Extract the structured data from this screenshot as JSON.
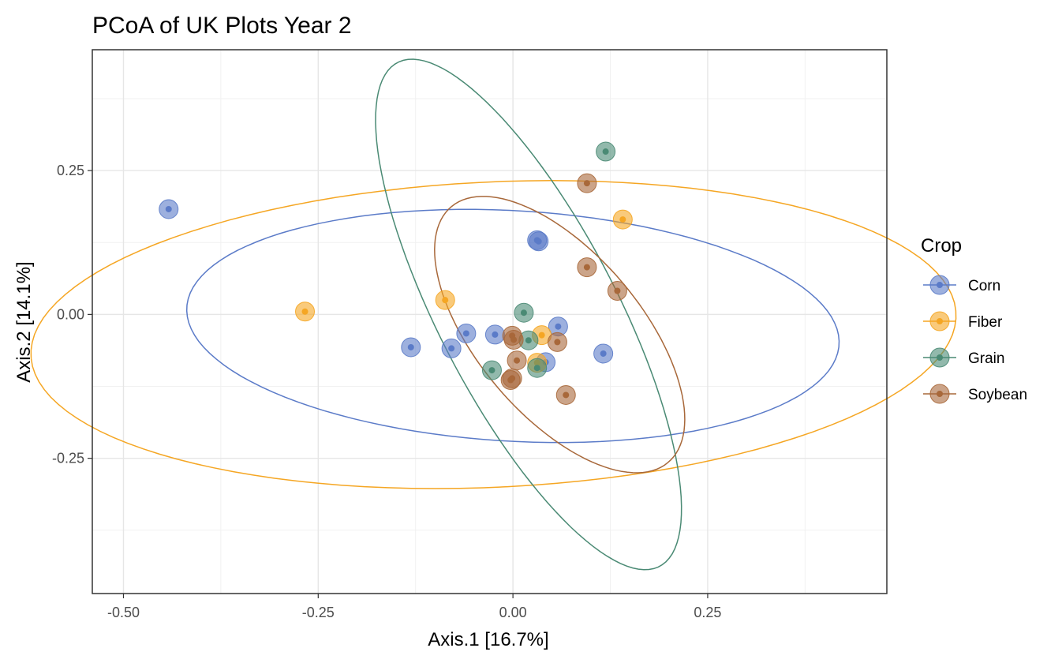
{
  "chart_data": {
    "type": "scatter",
    "title": "PCoA of UK Plots Year 2",
    "xlabel": "Axis.1   [16.7%]",
    "ylabel": "Axis.2   [14.1%]",
    "xlim": [
      -0.54,
      0.48
    ],
    "ylim": [
      -0.485,
      0.46
    ],
    "xticks": [
      -0.5,
      -0.25,
      0.0,
      0.25
    ],
    "xtick_labels": [
      "-0.50",
      "-0.25",
      "0.00",
      "0.25"
    ],
    "yticks": [
      -0.25,
      0.0,
      0.25
    ],
    "ytick_labels": [
      "-0.25",
      "0.00",
      "0.25"
    ],
    "grid": true,
    "legend": {
      "title": "Crop",
      "placement": "right"
    },
    "series": [
      {
        "name": "Corn",
        "color": "#5b7bc8",
        "points": [
          [
            -0.442,
            0.183
          ],
          [
            -0.131,
            -0.057
          ],
          [
            -0.079,
            -0.059
          ],
          [
            -0.06,
            -0.033
          ],
          [
            -0.023,
            -0.035
          ],
          [
            0.031,
            0.129
          ],
          [
            0.033,
            0.127
          ],
          [
            0.042,
            -0.083
          ],
          [
            0.058,
            -0.021
          ],
          [
            0.116,
            -0.068
          ]
        ],
        "ellipse": {
          "cx": 0.0,
          "cy": -0.02,
          "rx": 0.42,
          "ry": 0.2,
          "angle_deg": -5
        }
      },
      {
        "name": "Fiber",
        "color": "#f5a623",
        "points": [
          [
            -0.267,
            0.005
          ],
          [
            -0.087,
            0.025
          ],
          [
            0.037,
            -0.036
          ],
          [
            0.031,
            -0.084
          ],
          [
            0.141,
            0.165
          ]
        ],
        "ellipse": {
          "cx": -0.025,
          "cy": -0.035,
          "rx": 0.595,
          "ry": 0.265,
          "angle_deg": 4
        }
      },
      {
        "name": "Grain",
        "color": "#4a8a74",
        "points": [
          [
            0.119,
            0.283
          ],
          [
            0.014,
            0.003
          ],
          [
            0.02,
            -0.045
          ],
          [
            -0.027,
            -0.097
          ],
          [
            0.031,
            -0.093
          ]
        ],
        "ellipse": {
          "cx": 0.02,
          "cy": 0.0,
          "rx": 0.12,
          "ry": 0.47,
          "angle_deg": 20
        }
      },
      {
        "name": "Soybean",
        "color": "#a8683a",
        "points": [
          [
            0.095,
            0.228
          ],
          [
            0.095,
            0.082
          ],
          [
            0.134,
            0.041
          ],
          [
            -0.001,
            -0.037
          ],
          [
            0.001,
            -0.044
          ],
          [
            0.057,
            -0.048
          ],
          [
            0.005,
            -0.08
          ],
          [
            -0.001,
            -0.111
          ],
          [
            -0.003,
            -0.114
          ],
          [
            0.068,
            -0.14
          ]
        ],
        "ellipse": {
          "cx": 0.06,
          "cy": -0.035,
          "rx": 0.115,
          "ry": 0.265,
          "angle_deg": 28
        }
      }
    ]
  }
}
